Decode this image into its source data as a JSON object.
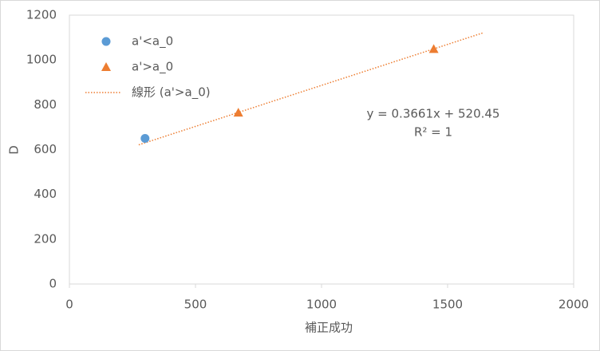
{
  "chart_data": {
    "type": "scatter",
    "xlabel": "補正成功",
    "ylabel": "D",
    "series": [
      {
        "name": "a'<a_0",
        "color": "#5b9bd5",
        "marker": "circle",
        "x": [
          300
        ],
        "values": [
          650
        ]
      },
      {
        "name": "a'>a_0",
        "color": "#ed7d31",
        "marker": "triangle",
        "x": [
          670,
          1445
        ],
        "values": [
          765,
          1049
        ]
      }
    ],
    "trendline": {
      "name": "線形 (a'>a_0)",
      "color": "#ed7d31",
      "slope": 0.3661,
      "intercept": 520.45,
      "x": [
        275,
        1640
      ],
      "equation": "y = 0.3661x + 520.45",
      "r_squared": "R² = 1"
    },
    "xlim": [
      0,
      2000
    ],
    "xticks": [
      0,
      500,
      1000,
      1500,
      2000
    ],
    "ylim": [
      0,
      1200
    ],
    "yticks": [
      0,
      200,
      400,
      600,
      800,
      1000,
      1200
    ],
    "grid": false,
    "legend": "upper left"
  }
}
